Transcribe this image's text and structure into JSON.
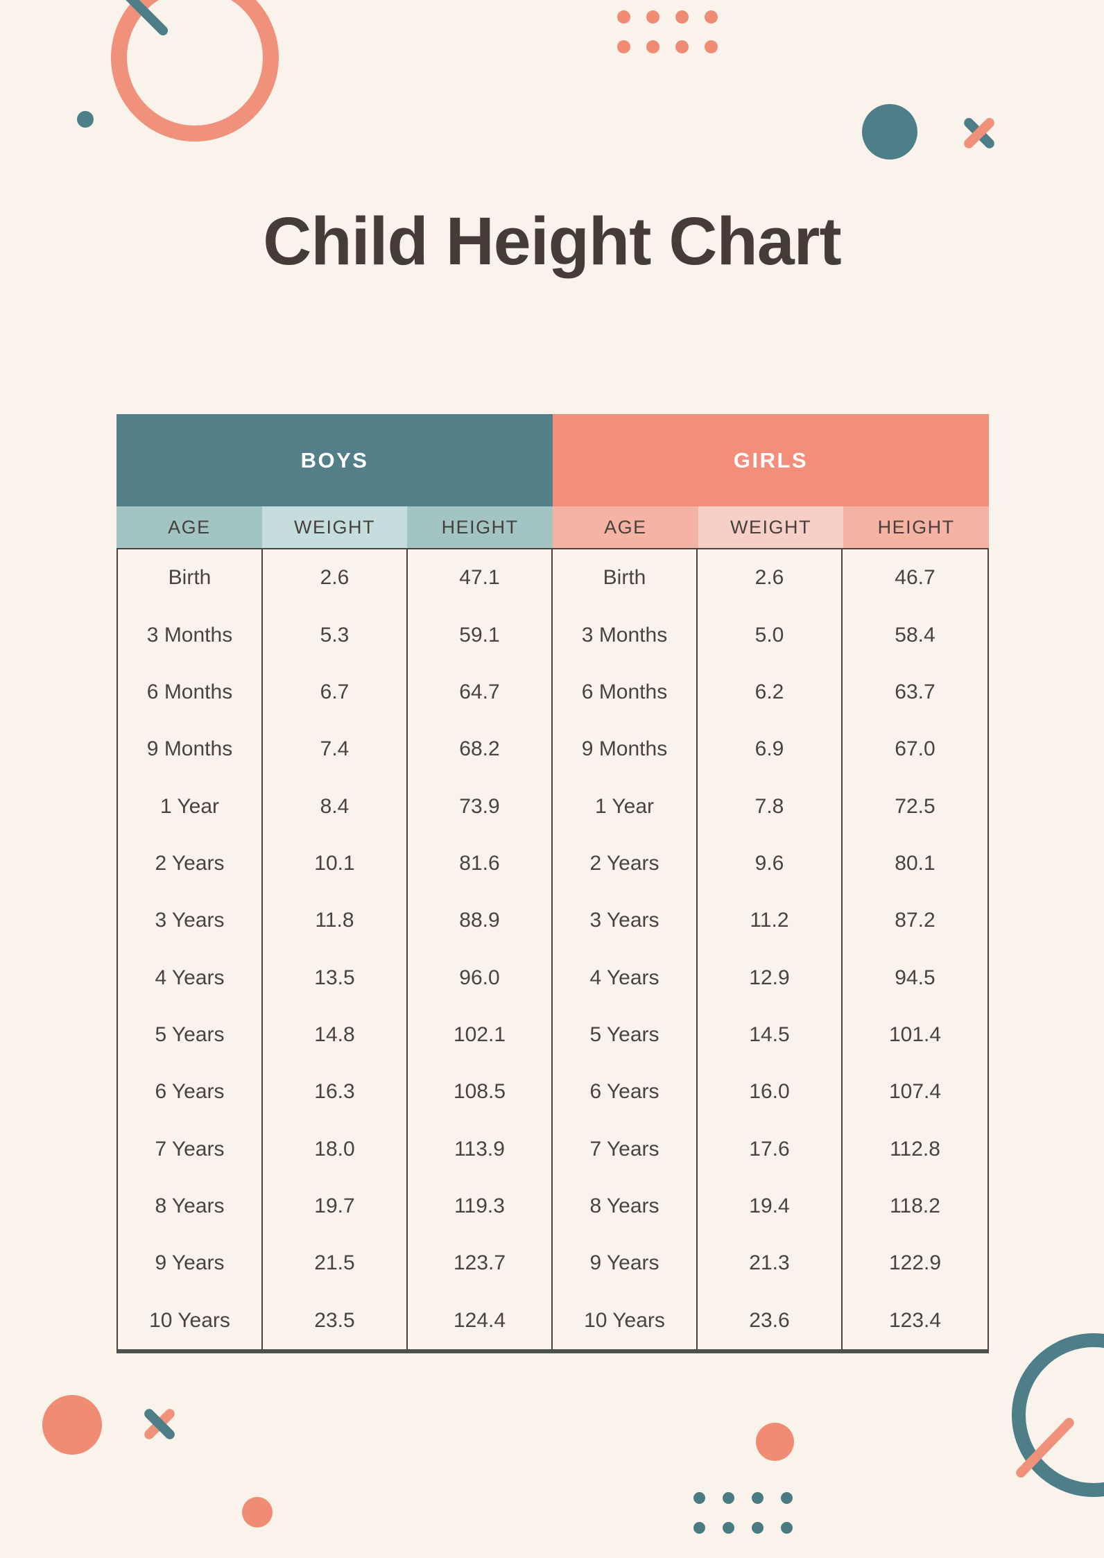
{
  "page": {
    "title": "Child Height Chart",
    "background": "#faf3ec"
  },
  "palette": {
    "teal": "#4e7e88",
    "teal_header": "#527f88",
    "teal_sub": "#a2c4c3",
    "teal_sub_light": "#c5dedd",
    "coral": "#f08c74",
    "coral_header": "#f28e79",
    "coral_sub": "#f5b3a3",
    "coral_sub_light": "#f6cfc6",
    "border": "#474340",
    "text": "#4b423e",
    "title_text": "#473b39",
    "header_text": "#ffffff"
  },
  "decorations": [
    "coral-ring-top-left",
    "teal-line-top-left",
    "teal-dot-left",
    "coral-dots-grid-top",
    "teal-circle-right",
    "coral-teal-cross-right",
    "coral-circle-bottom-left",
    "teal-coral-cross-bottom-left",
    "coral-dot-bottom-center",
    "coral-dot-bottom-left-middle",
    "teal-dots-grid-bottom",
    "teal-ring-bottom-right",
    "coral-line-bottom-right"
  ],
  "table": {
    "groups": [
      {
        "label": "BOYS"
      },
      {
        "label": "GIRLS"
      }
    ],
    "columns": [
      "AGE",
      "WEIGHT",
      "HEIGHT",
      "AGE",
      "WEIGHT",
      "HEIGHT"
    ],
    "rows": [
      [
        "Birth",
        "2.6",
        "47.1",
        "Birth",
        "2.6",
        "46.7"
      ],
      [
        "3 Months",
        "5.3",
        "59.1",
        "3 Months",
        "5.0",
        "58.4"
      ],
      [
        "6 Months",
        "6.7",
        "64.7",
        "6 Months",
        "6.2",
        "63.7"
      ],
      [
        "9 Months",
        "7.4",
        "68.2",
        "9 Months",
        "6.9",
        "67.0"
      ],
      [
        "1 Year",
        "8.4",
        "73.9",
        "1 Year",
        "7.8",
        "72.5"
      ],
      [
        "2 Years",
        "10.1",
        "81.6",
        "2 Years",
        "9.6",
        "80.1"
      ],
      [
        "3 Years",
        "11.8",
        "88.9",
        "3 Years",
        "11.2",
        "87.2"
      ],
      [
        "4 Years",
        "13.5",
        "96.0",
        "4 Years",
        "12.9",
        "94.5"
      ],
      [
        "5 Years",
        "14.8",
        "102.1",
        "5 Years",
        "14.5",
        "101.4"
      ],
      [
        "6 Years",
        "16.3",
        "108.5",
        "6 Years",
        "16.0",
        "107.4"
      ],
      [
        "7 Years",
        "18.0",
        "113.9",
        "7 Years",
        "17.6",
        "112.8"
      ],
      [
        "8 Years",
        "19.7",
        "119.3",
        "8 Years",
        "19.4",
        "118.2"
      ],
      [
        "9 Years",
        "21.5",
        "123.7",
        "9 Years",
        "21.3",
        "122.9"
      ],
      [
        "10 Years",
        "23.5",
        "124.4",
        "10 Years",
        "23.6",
        "123.4"
      ]
    ]
  }
}
